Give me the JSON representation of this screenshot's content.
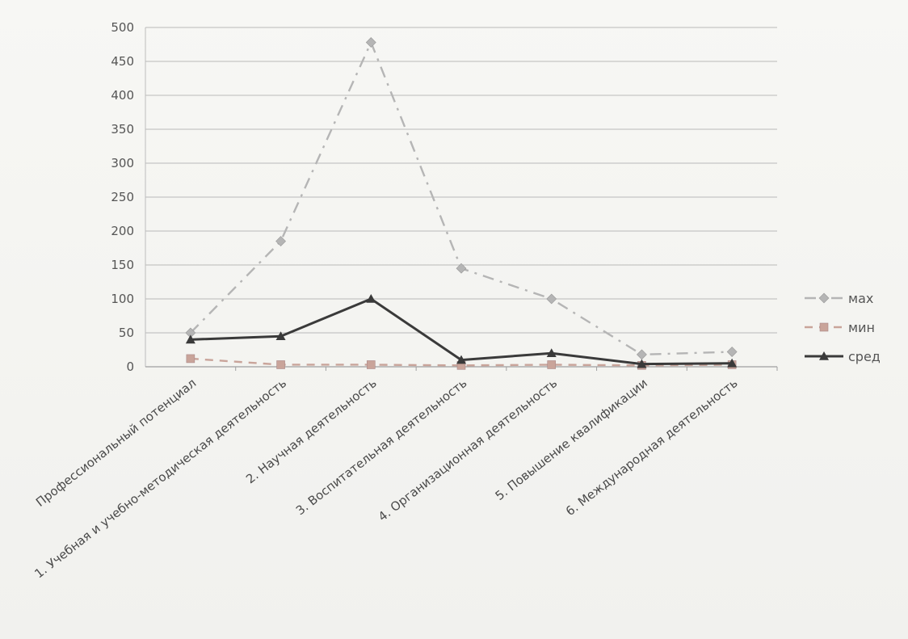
{
  "chart_data": {
    "type": "line",
    "categories": [
      "Профессиональный потенциал",
      "1. Учебная и учебно-методическая деятельность",
      "2. Научная деятельность",
      "3. Воспитательная деятельность",
      "4. Организационная деятельность",
      "5. Повышение квалификации",
      "6. Международная деятельность"
    ],
    "series": [
      {
        "name": "мах",
        "values": [
          50,
          185,
          478,
          145,
          100,
          18,
          22
        ],
        "color": "#b5b5b5",
        "dash": "dashdot",
        "marker": "diamond"
      },
      {
        "name": "мин",
        "values": [
          12,
          3,
          3,
          2,
          3,
          2,
          3
        ],
        "color": "#c9a49a",
        "dash": "dash",
        "marker": "square"
      },
      {
        "name": "сред",
        "values": [
          40,
          45,
          100,
          10,
          20,
          4,
          5
        ],
        "color": "#3a3a3a",
        "dash": "solid",
        "marker": "triangle"
      }
    ],
    "ylim": [
      0,
      500
    ],
    "yticks": [
      "0",
      "50",
      "100",
      "150",
      "200",
      "250",
      "300",
      "350",
      "400",
      "450",
      "500"
    ],
    "grid": true,
    "legend": "right"
  }
}
